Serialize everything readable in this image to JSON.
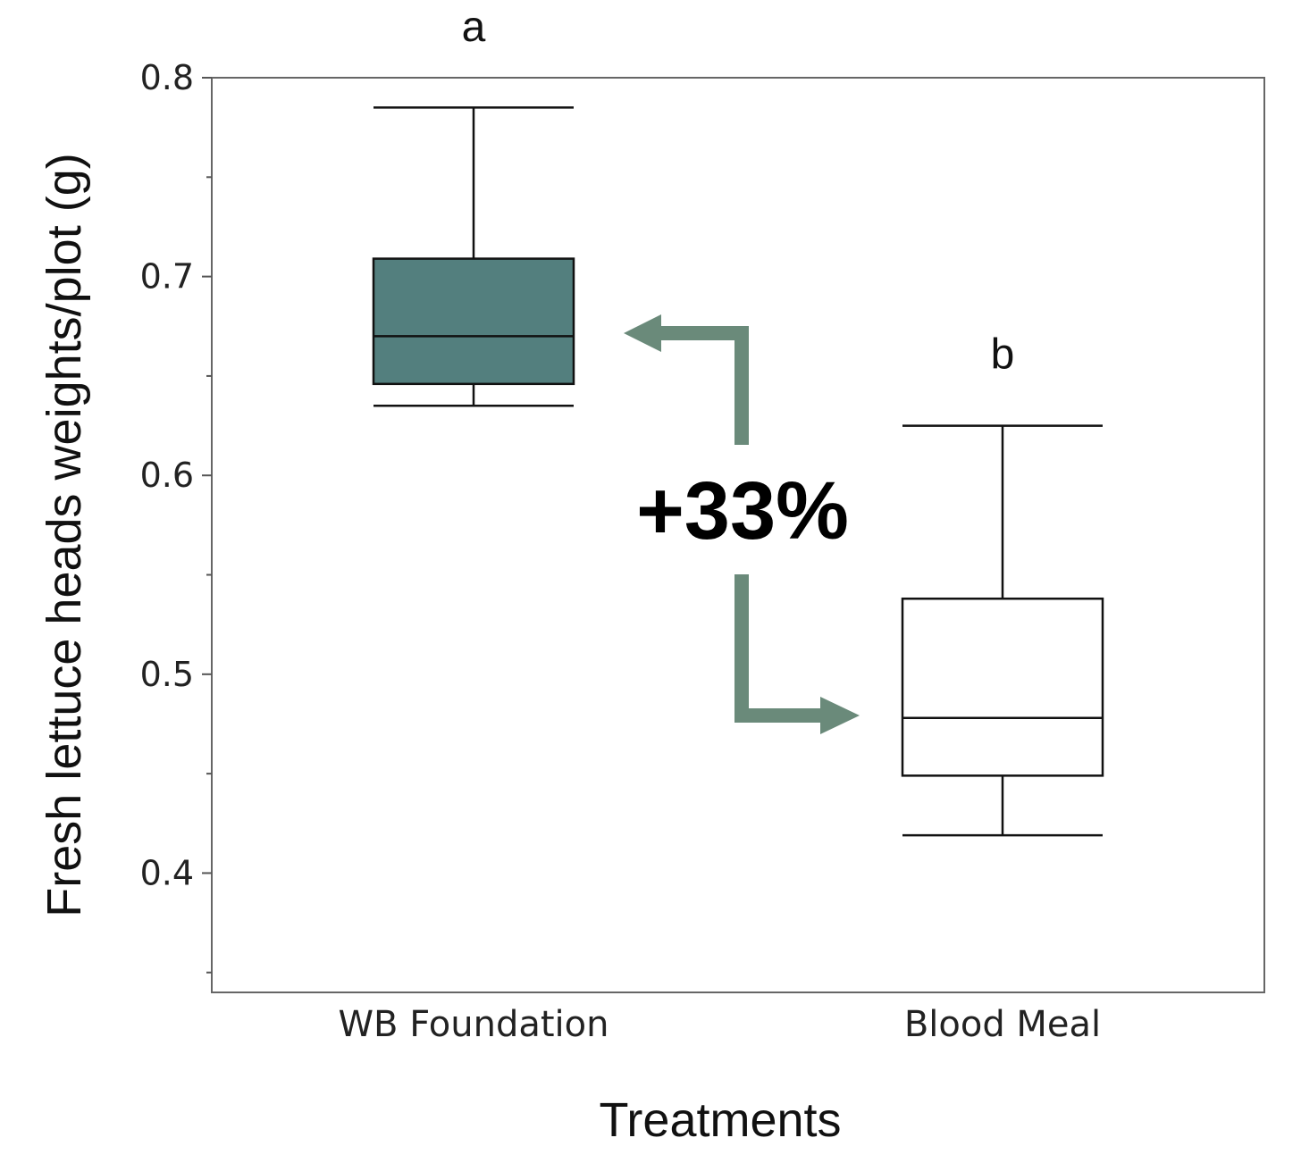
{
  "chart_data": {
    "type": "box",
    "title": "",
    "xlabel": "Treatments",
    "ylabel": "Fresh lettuce heads weights/plot (g)",
    "ylim": [
      0.34,
      0.8
    ],
    "yticks": [
      0.4,
      0.5,
      0.6,
      0.7,
      0.8
    ],
    "yticks_minor": [
      0.35,
      0.45,
      0.55,
      0.65,
      0.75
    ],
    "grid": false,
    "categories": [
      "WB Foundation",
      "Blood Meal"
    ],
    "boxes": [
      {
        "category": "WB Foundation",
        "min": 0.635,
        "q1": 0.646,
        "median": 0.67,
        "q3": 0.709,
        "max": 0.785,
        "fill": "#537f7e",
        "group_letter": "a"
      },
      {
        "category": "Blood Meal",
        "min": 0.419,
        "q1": 0.449,
        "median": 0.478,
        "q3": 0.538,
        "max": 0.625,
        "fill": "#ffffff",
        "group_letter": "b"
      }
    ],
    "annotation": {
      "text": "+33%",
      "arrow_color": "#6a8a7a"
    }
  }
}
